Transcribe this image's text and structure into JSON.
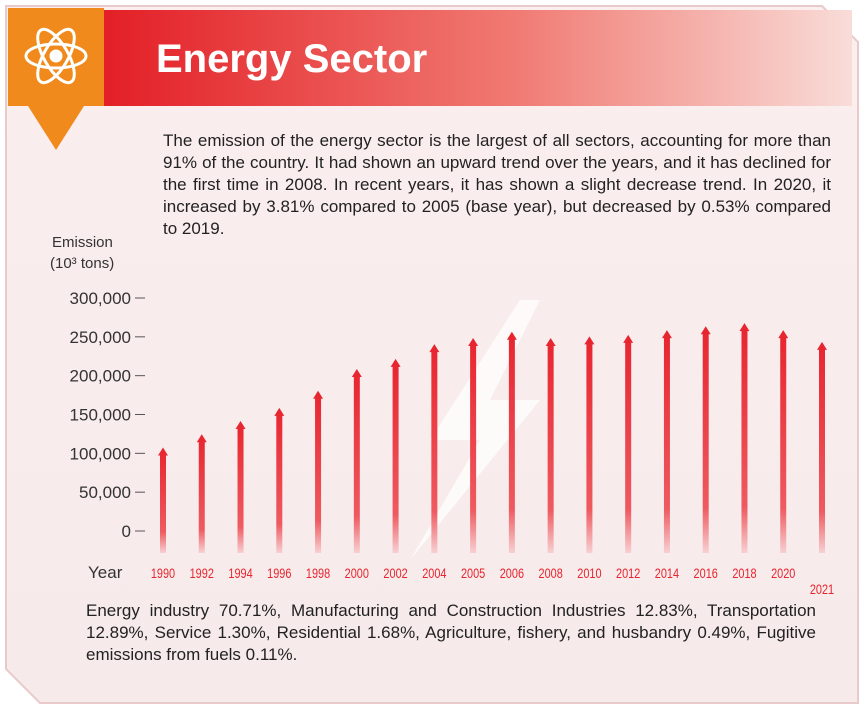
{
  "chart_data": {
    "type": "bar",
    "title": "Energy Sector",
    "description": "The emission of the energy sector is the largest of all sectors, accounting for more than 91% of the country. It had shown an upward trend over the years, and it has declined for the first time in 2008. In recent years, it has shown a slight decrease trend. In 2020, it increased by 3.81% compared to 2005 (base year), but decreased by 0.53% compared to 2019.",
    "y_label": "Emission",
    "y_unit": "(10³ tons)",
    "x_label": "Year",
    "footnote": "Energy industry 70.71%, Manufacturing and Construction Industries 12.83%, Transportation 12.89%, Service 1.30%, Residential 1.68%, Agriculture, fishery, and husbandry 0.49%, Fugitive emissions from fuels 0.11%.",
    "categories": [
      "1990",
      "1992",
      "1994",
      "1996",
      "1998",
      "2000",
      "2002",
      "2004",
      "2005",
      "2006",
      "2008",
      "2010",
      "2012",
      "2014",
      "2016",
      "2018",
      "2020",
      "2021"
    ],
    "values": [
      105000,
      122000,
      139000,
      156000,
      178000,
      206000,
      219000,
      238000,
      246000,
      254000,
      246000,
      248000,
      250000,
      256000,
      261000,
      265000,
      256000,
      241000
    ],
    "color": "#e8242e",
    "ylim": [
      0,
      300000
    ],
    "yticks": [
      0,
      {
        "value": 50000,
        "label": "50,000"
      },
      {
        "value": 100000,
        "label": "100,000"
      },
      {
        "value": 150000,
        "label": "150,000"
      },
      {
        "value": 200000,
        "label": "200,000"
      },
      {
        "value": 250000,
        "label": "250,000"
      },
      {
        "value": 300000,
        "label": "300,000"
      }
    ],
    "grid": false
  }
}
